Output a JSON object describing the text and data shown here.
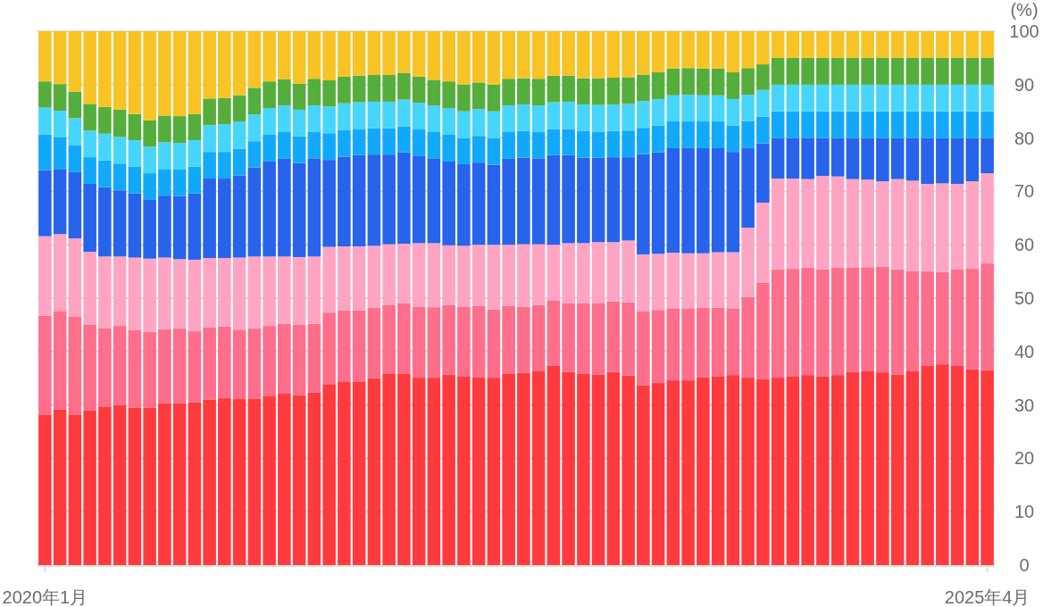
{
  "chart_data": {
    "type": "bar",
    "stacked": true,
    "ylabel": "(%)",
    "grid": "y",
    "categories": [
      "2020年1月",
      null,
      null,
      null,
      null,
      null,
      null,
      null,
      null,
      null,
      null,
      null,
      null,
      null,
      null,
      null,
      null,
      null,
      null,
      null,
      null,
      null,
      null,
      null,
      null,
      null,
      null,
      null,
      null,
      null,
      null,
      null,
      null,
      null,
      null,
      null,
      null,
      null,
      null,
      null,
      null,
      null,
      null,
      null,
      null,
      null,
      null,
      null,
      null,
      null,
      null,
      null,
      null,
      null,
      null,
      null,
      null,
      null,
      null,
      null,
      null,
      null,
      null,
      "2025年4月"
    ],
    "ylim": [
      0,
      100
    ],
    "yticks": [
      0,
      10,
      20,
      30,
      40,
      50,
      60,
      70,
      80,
      90,
      100
    ],
    "series": [
      {
        "color": "#ff3a3e",
        "values": [
          28.2,
          29.2,
          28.2,
          29.0,
          29.6,
          30.0,
          29.5,
          29.5,
          30.3,
          30.3,
          30.5,
          31.0,
          31.3,
          31.1,
          31.2,
          31.6,
          32.1,
          31.8,
          32.3,
          33.9,
          34.4,
          34.4,
          35.0,
          35.9,
          35.8,
          35.1,
          35.1,
          35.7,
          35.4,
          35.2,
          35.1,
          35.8,
          36.0,
          36.4,
          37.3,
          36.2,
          35.9,
          35.7,
          36.2,
          35.5,
          33.7,
          34.1,
          34.6,
          34.6,
          35.2,
          35.4,
          35.6,
          35.1,
          34.8,
          35.1,
          35.4,
          35.6,
          35.3,
          35.6,
          36.2,
          36.3,
          36.1,
          35.7,
          36.4,
          37.4,
          37.6,
          37.3,
          36.7,
          36.5
        ]
      },
      {
        "color": "#ff6e8b",
        "values": [
          18.5,
          18.4,
          18.3,
          16.0,
          14.8,
          14.8,
          14.5,
          14.2,
          13.9,
          14.0,
          13.3,
          13.5,
          13.4,
          13.0,
          13.1,
          13.2,
          13.1,
          13.2,
          12.9,
          13.4,
          13.3,
          13.3,
          13.2,
          12.8,
          13.2,
          13.3,
          13.2,
          13.0,
          13.0,
          13.3,
          12.8,
          12.7,
          12.4,
          12.3,
          12.3,
          12.9,
          13.1,
          13.4,
          13.2,
          13.7,
          13.9,
          13.7,
          13.5,
          13.5,
          13.0,
          12.8,
          12.5,
          15.1,
          18.1,
          20.3,
          20.1,
          20.1,
          20.1,
          20.1,
          19.5,
          19.5,
          19.8,
          19.7,
          18.7,
          17.6,
          17.3,
          18.1,
          18.8,
          20.0
        ]
      },
      {
        "color": "#ffa5c3",
        "values": [
          14.9,
          14.4,
          14.7,
          13.7,
          13.4,
          13.0,
          13.6,
          13.7,
          13.4,
          13.0,
          13.4,
          13.0,
          12.8,
          13.5,
          13.5,
          13.0,
          12.6,
          12.7,
          12.6,
          12.3,
          12.0,
          12.0,
          11.6,
          11.4,
          11.2,
          11.9,
          12.0,
          11.2,
          11.4,
          11.5,
          12.1,
          11.5,
          11.7,
          11.4,
          10.4,
          11.2,
          11.3,
          11.4,
          11.1,
          11.6,
          10.6,
          10.5,
          10.4,
          10.3,
          10.2,
          10.4,
          10.5,
          13.0,
          15.0,
          17.0,
          16.9,
          16.6,
          17.5,
          17.1,
          16.6,
          16.4,
          16.0,
          16.9,
          16.9,
          16.4,
          16.6,
          16.0,
          16.4,
          16.9
        ]
      },
      {
        "color": "#2863eb",
        "values": [
          12.4,
          12.2,
          12.4,
          12.7,
          13.0,
          12.4,
          12.0,
          11.0,
          11.6,
          11.8,
          12.4,
          14.9,
          14.9,
          15.4,
          16.7,
          17.8,
          18.3,
          17.6,
          18.4,
          16.3,
          16.8,
          17.1,
          17.1,
          16.8,
          17.1,
          16.3,
          15.8,
          15.7,
          15.3,
          15.4,
          15.0,
          16.1,
          16.2,
          16.1,
          16.8,
          16.5,
          16.0,
          15.8,
          15.9,
          15.6,
          18.8,
          19.0,
          19.6,
          19.8,
          19.7,
          19.5,
          18.8,
          15.0,
          11.1,
          7.6,
          7.6,
          7.7,
          7.1,
          7.2,
          7.7,
          7.8,
          8.1,
          7.7,
          8.0,
          8.6,
          8.5,
          8.6,
          8.1,
          6.6
        ]
      },
      {
        "color": "#13a9fa",
        "values": [
          6.7,
          5.9,
          5.1,
          5.0,
          5.0,
          5.0,
          5.0,
          5.0,
          5.0,
          5.0,
          5.0,
          5.0,
          5.0,
          5.0,
          4.9,
          5.0,
          5.0,
          5.0,
          5.0,
          5.0,
          5.0,
          4.8,
          4.9,
          4.9,
          4.9,
          5.0,
          5.0,
          5.0,
          4.9,
          5.0,
          5.0,
          5.0,
          5.0,
          5.0,
          4.9,
          4.9,
          5.0,
          4.9,
          4.9,
          5.0,
          4.9,
          5.0,
          5.0,
          4.9,
          5.0,
          5.0,
          4.9,
          5.0,
          5.0,
          5.0,
          5.0,
          5.0,
          5.0,
          5.0,
          5.0,
          5.0,
          5.0,
          5.0,
          5.0,
          5.0,
          5.0,
          5.0,
          5.0,
          5.0
        ]
      },
      {
        "color": "#48d5fb",
        "values": [
          5.0,
          5.0,
          5.0,
          5.0,
          5.0,
          5.0,
          5.0,
          5.0,
          5.0,
          5.0,
          5.0,
          5.0,
          5.2,
          5.1,
          5.0,
          5.0,
          5.0,
          5.0,
          4.9,
          5.0,
          5.0,
          5.1,
          5.0,
          5.0,
          5.0,
          5.0,
          5.0,
          5.0,
          5.0,
          5.0,
          5.0,
          5.0,
          5.0,
          4.9,
          5.0,
          5.1,
          5.0,
          5.0,
          5.0,
          5.0,
          5.0,
          5.0,
          4.9,
          5.0,
          4.9,
          4.9,
          5.0,
          4.9,
          5.0,
          5.0,
          5.0,
          5.0,
          5.0,
          5.0,
          5.0,
          5.0,
          5.0,
          5.0,
          5.0,
          5.0,
          5.0,
          5.0,
          5.0,
          5.0
        ]
      },
      {
        "color": "#55ae3b",
        "values": [
          4.9,
          5.0,
          5.0,
          5.0,
          5.0,
          5.1,
          4.9,
          4.9,
          5.0,
          5.0,
          4.9,
          5.0,
          4.9,
          4.9,
          5.0,
          5.0,
          4.9,
          4.9,
          5.0,
          4.9,
          5.0,
          5.0,
          5.0,
          5.0,
          5.0,
          4.9,
          4.8,
          5.0,
          5.0,
          5.0,
          5.0,
          5.0,
          4.9,
          5.0,
          5.0,
          4.9,
          4.9,
          5.0,
          5.0,
          5.0,
          5.0,
          5.0,
          5.0,
          5.0,
          5.0,
          5.0,
          5.0,
          5.0,
          4.8,
          5.0,
          5.0,
          5.0,
          5.0,
          5.0,
          5.0,
          5.0,
          5.0,
          5.0,
          5.0,
          5.0,
          5.0,
          5.0,
          5.0,
          5.0
        ]
      },
      {
        "color": "#f7c325",
        "values": [
          9.4,
          9.9,
          11.3,
          13.6,
          14.2,
          14.7,
          15.5,
          16.7,
          15.8,
          15.9,
          15.5,
          12.6,
          12.5,
          12.0,
          10.6,
          9.4,
          9.0,
          9.8,
          8.9,
          9.2,
          8.5,
          8.3,
          8.2,
          8.2,
          7.8,
          8.5,
          9.1,
          9.4,
          10.0,
          9.6,
          10.0,
          8.9,
          8.8,
          8.9,
          8.3,
          8.3,
          8.8,
          8.8,
          8.7,
          8.6,
          8.1,
          7.7,
          7.0,
          6.9,
          7.0,
          7.0,
          7.7,
          6.9,
          6.2,
          5.0,
          5.0,
          5.0,
          5.0,
          5.0,
          5.0,
          5.0,
          5.0,
          5.0,
          5.0,
          5.0,
          5.0,
          5.0,
          5.0,
          5.0
        ]
      }
    ]
  }
}
